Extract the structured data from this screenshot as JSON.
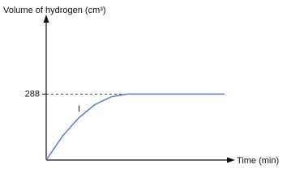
{
  "chart_data": {
    "type": "line",
    "y_label": "Volume of hydrogen (cm³)",
    "x_label": "Time (min)",
    "annotation": "I",
    "categories": [
      null,
      null,
      null,
      null,
      null,
      null,
      null,
      null,
      null,
      null,
      null,
      null
    ],
    "series": [
      {
        "color": "#5b7ccc",
        "values": [
          0,
          104,
          184,
          242,
          276,
          288,
          288,
          288,
          288,
          288,
          288,
          288
        ]
      }
    ],
    "ylim": [
      0,
      600
    ],
    "yticks": [
      288
    ],
    "grid": true
  }
}
